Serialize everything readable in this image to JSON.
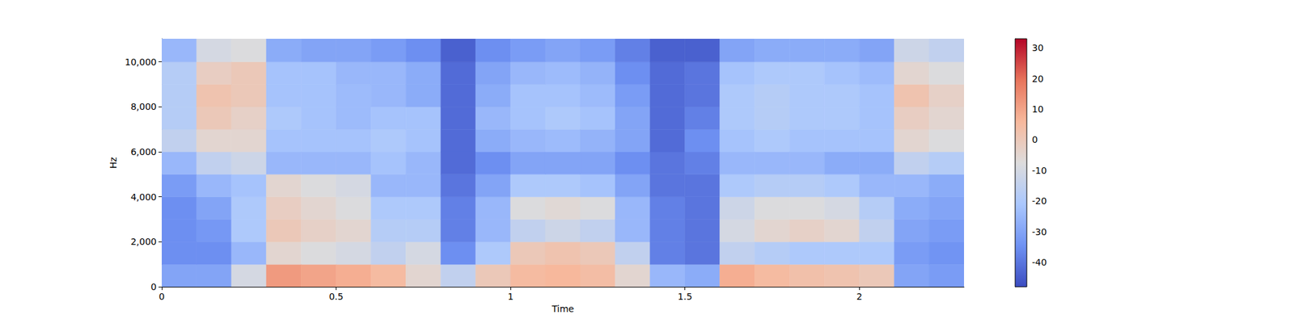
{
  "chart_data": {
    "type": "heatmap",
    "x_label": "Time",
    "y_label": "Hz",
    "xlim": [
      0,
      2.3
    ],
    "ylim": [
      0,
      11025
    ],
    "xticks": [
      0,
      0.5,
      1,
      1.5,
      2
    ],
    "yticks": [
      0,
      2000,
      4000,
      6000,
      8000,
      10000
    ],
    "x_bins": [
      0,
      0.1,
      0.2,
      0.3,
      0.4,
      0.5,
      0.6,
      0.7,
      0.8,
      0.9,
      1.0,
      1.1,
      1.2,
      1.3,
      1.4,
      1.5,
      1.6,
      1.7,
      1.8,
      1.9,
      2.0,
      2.1,
      2.2,
      2.3
    ],
    "y_bins": [
      0,
      1000,
      2000,
      3000,
      4000,
      5000,
      6000,
      7000,
      8000,
      9000,
      10000,
      11025
    ],
    "cells": [
      [
        -30,
        -35,
        -35,
        -35,
        -32,
        -25,
        -15,
        -18,
        -18,
        -18,
        -25
      ],
      [
        -30,
        -35,
        -33,
        -30,
        -25,
        -15,
        -5,
        0,
        2,
        -2,
        -10
      ],
      [
        -10,
        -25,
        -20,
        -20,
        -22,
        -12,
        -5,
        -3,
        0,
        0,
        -8
      ],
      [
        12,
        -5,
        0,
        -2,
        -5,
        -25,
        -22,
        -20,
        -22,
        -22,
        -28
      ],
      [
        10,
        -8,
        -3,
        -5,
        -8,
        -25,
        -22,
        -22,
        -22,
        -22,
        -30
      ],
      [
        8,
        -10,
        -5,
        -8,
        -10,
        -25,
        -22,
        -24,
        -24,
        -25,
        -30
      ],
      [
        5,
        -15,
        -18,
        -20,
        -25,
        -22,
        -20,
        -22,
        -25,
        -25,
        -32
      ],
      [
        -5,
        -10,
        -18,
        -20,
        -25,
        -25,
        -22,
        -22,
        -28,
        -28,
        -35
      ],
      [
        -15,
        -35,
        -38,
        -38,
        -40,
        -42,
        -42,
        -42,
        -42,
        -42,
        -44
      ],
      [
        0,
        -20,
        -25,
        -25,
        -30,
        -35,
        -28,
        -25,
        -28,
        -30,
        -35
      ],
      [
        5,
        0,
        -15,
        -8,
        -20,
        -30,
        -25,
        -22,
        -22,
        -25,
        -32
      ],
      [
        6,
        2,
        -12,
        -6,
        -20,
        -30,
        -24,
        -20,
        -22,
        -24,
        -30
      ],
      [
        4,
        0,
        -15,
        -8,
        -22,
        -30,
        -26,
        -22,
        -24,
        -26,
        -32
      ],
      [
        -5,
        -15,
        -25,
        -25,
        -30,
        -35,
        -30,
        -30,
        -32,
        -35,
        -38
      ],
      [
        -25,
        -38,
        -38,
        -38,
        -40,
        -40,
        -42,
        -42,
        -42,
        -42,
        -44
      ],
      [
        -28,
        -40,
        -40,
        -40,
        -40,
        -38,
        -35,
        -38,
        -40,
        -40,
        -44
      ],
      [
        8,
        -15,
        -10,
        -12,
        -20,
        -25,
        -22,
        -20,
        -20,
        -22,
        -30
      ],
      [
        5,
        -18,
        -5,
        -8,
        -18,
        -25,
        -20,
        -18,
        -18,
        -20,
        -28
      ],
      [
        3,
        -20,
        -3,
        -8,
        -18,
        -25,
        -22,
        -20,
        -20,
        -20,
        -28
      ],
      [
        2,
        -20,
        -5,
        -10,
        -20,
        -28,
        -22,
        -20,
        -20,
        -22,
        -28
      ],
      [
        0,
        -20,
        -15,
        -18,
        -25,
        -28,
        -22,
        -22,
        -22,
        -24,
        -30
      ],
      [
        -30,
        -32,
        -30,
        -28,
        -25,
        -15,
        -5,
        -2,
        2,
        -5,
        -12
      ],
      [
        -32,
        -34,
        -32,
        -30,
        -28,
        -18,
        -8,
        -5,
        -3,
        -8,
        -15
      ]
    ],
    "colorbar": {
      "range": [
        -48,
        33
      ],
      "ticks": [
        -40,
        -30,
        -20,
        -10,
        0,
        10,
        20,
        30
      ]
    }
  }
}
